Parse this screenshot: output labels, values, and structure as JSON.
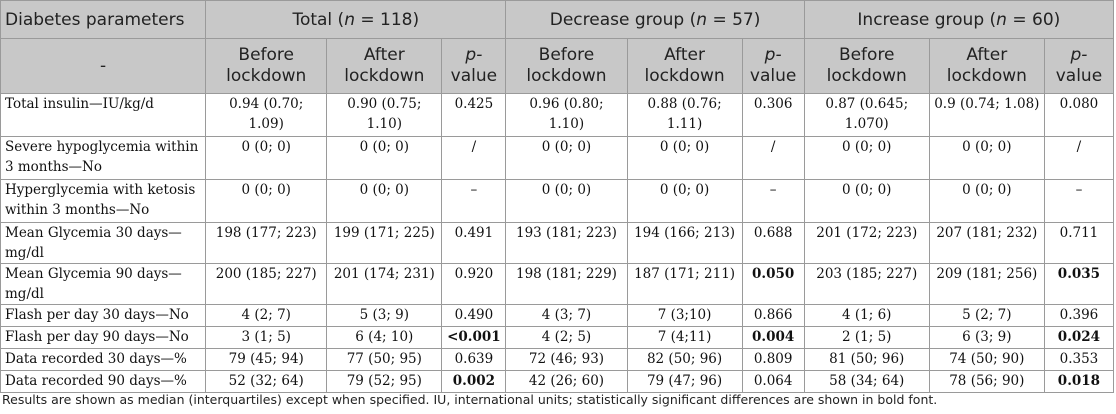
{
  "header": {
    "param_label": "Diabetes parameters",
    "total": {
      "prefix": "Total (",
      "n": "n",
      "suffix": " = 118)"
    },
    "decrease": {
      "prefix": "Decrease group (",
      "n": "n",
      "suffix": " = 57)"
    },
    "increase": {
      "prefix": "Increase group (",
      "n": "n",
      "suffix": " = 60)"
    },
    "dash": "-",
    "before": [
      "Before",
      "lockdown"
    ],
    "after": [
      "After",
      "lockdown"
    ],
    "pvalue": [
      "p-",
      "value"
    ]
  },
  "rows": [
    {
      "label": "Total insulin—IU/kg/d",
      "t_b": "0.94 (0.70; 1.09)",
      "t_a": "0.90 (0.75; 1.10)",
      "t_p": "0.425",
      "d_b": "0.96 (0.80; 1.10)",
      "d_a": "0.88 (0.76; 1.11)",
      "d_p": "0.306",
      "i_b": "0.87 (0.645; 1.070)",
      "i_a": "0.9 (0.74; 1.08)",
      "i_p": "0.080"
    },
    {
      "label": "Severe hypoglycemia within 3 months—No",
      "t_b": "0 (0; 0)",
      "t_a": "0 (0; 0)",
      "t_p": "/",
      "d_b": "0 (0; 0)",
      "d_a": "0 (0; 0)",
      "d_p": "/",
      "i_b": "0 (0; 0)",
      "i_a": "0 (0; 0)",
      "i_p": "/"
    },
    {
      "label": "Hyperglycemia with ketosis within 3 months—No",
      "t_b": "0 (0; 0)",
      "t_a": "0 (0; 0)",
      "t_p": "–",
      "d_b": "0 (0; 0)",
      "d_a": "0 (0; 0)",
      "d_p": "–",
      "i_b": "0 (0; 0)",
      "i_a": "0 (0; 0)",
      "i_p": "–"
    },
    {
      "label": "Mean Glycemia 30 days—mg/dl",
      "t_b": "198 (177; 223)",
      "t_a": "199 (171; 225)",
      "t_p": "0.491",
      "d_b": "193 (181; 223)",
      "d_a": "194 (166; 213)",
      "d_p": "0.688",
      "i_b": "201 (172; 223)",
      "i_a": "207 (181; 232)",
      "i_p": "0.711"
    },
    {
      "label": "Mean Glycemia 90 days—mg/dl",
      "t_b": "200 (185; 227)",
      "t_a": "201 (174; 231)",
      "t_p": "0.920",
      "d_b": "198 (181; 229)",
      "d_a": "187 (171; 211)",
      "d_p": "0.050",
      "i_b": "203 (185; 227)",
      "i_a": "209 (181; 256)",
      "i_p": "0.035"
    },
    {
      "label": "Flash per day 30 days—No",
      "t_b": "4 (2; 7)",
      "t_a": "5 (3; 9)",
      "t_p": "0.490",
      "d_b": "4 (3; 7)",
      "d_a": "7 (3;10)",
      "d_p": "0.866",
      "i_b": "4 (1; 6)",
      "i_a": "5 (2; 7)",
      "i_p": "0.396"
    },
    {
      "label": "Flash per day 90 days—No",
      "t_b": "3 (1; 5)",
      "t_a": "6 (4; 10)",
      "t_p": "<0.001",
      "d_b": "4 (2; 5)",
      "d_a": "7 (4;11)",
      "d_p": "0.004",
      "i_b": "2 (1; 5)",
      "i_a": "6 (3; 9)",
      "i_p": "0.024"
    },
    {
      "label": "Data recorded 30 days—%",
      "t_b": "79 (45; 94)",
      "t_a": "77 (50; 95)",
      "t_p": "0.639",
      "d_b": "72 (46; 93)",
      "d_a": "82 (50; 96)",
      "d_p": "0.809",
      "i_b": "81 (50; 96)",
      "i_a": "74 (50; 90)",
      "i_p": "0.353"
    },
    {
      "label": "Data recorded 90 days—%",
      "t_b": "52 (32; 64)",
      "t_a": "79 (52; 95)",
      "t_p": "0.002",
      "d_b": "42 (26; 60)",
      "d_a": "79 (47; 96)",
      "d_p": "0.064",
      "i_b": "58 (34; 64)",
      "i_a": "78 (56; 90)",
      "i_p": "0.018"
    }
  ],
  "bold_cells": [
    "6.t_p",
    "8.t_p",
    "4.d_p",
    "6.d_p",
    "4.i_p",
    "6.i_p",
    "8.i_p"
  ],
  "footnote": "Results are shown as median (interquartiles) except when specified. IU, international units; statistically significant differences are shown in bold font."
}
